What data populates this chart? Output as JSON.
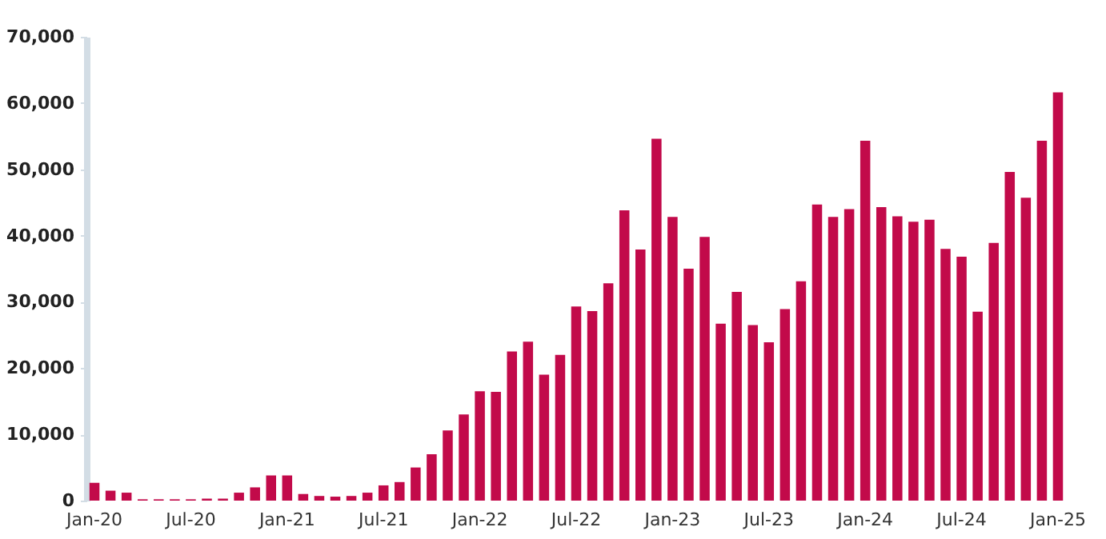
{
  "chart_data": {
    "type": "bar",
    "categories": [
      "Jan-20",
      null,
      null,
      null,
      null,
      null,
      "Jul-20",
      null,
      null,
      null,
      null,
      null,
      "Jan-21",
      null,
      null,
      null,
      null,
      null,
      "Jul-21",
      null,
      null,
      null,
      null,
      null,
      "Jan-22",
      null,
      null,
      null,
      null,
      null,
      "Jul-22",
      null,
      null,
      null,
      null,
      null,
      "Jan-23",
      null,
      null,
      null,
      null,
      null,
      "Jul-23",
      null,
      null,
      null,
      null,
      null,
      "Jan-24",
      null,
      null,
      null,
      null,
      null,
      "Jul-24",
      null,
      null,
      null,
      null,
      null,
      "Jan-25"
    ],
    "values": [
      2700,
      1500,
      1200,
      200,
      200,
      200,
      200,
      300,
      300,
      1200,
      2000,
      3800,
      3800,
      1000,
      700,
      600,
      700,
      1200,
      2300,
      2800,
      5000,
      7000,
      10600,
      13000,
      16500,
      16400,
      22500,
      24000,
      19000,
      22000,
      29300,
      28600,
      32800,
      43800,
      37900,
      54600,
      42800,
      35000,
      39800,
      26700,
      31500,
      26500,
      23900,
      28900,
      33100,
      44700,
      42800,
      44000,
      54300,
      44300,
      42900,
      42100,
      42400,
      38000,
      36800,
      28500,
      38900,
      49600,
      45700,
      54300,
      61600
    ],
    "color": "#c20a4a",
    "ylim": [
      0,
      70000
    ],
    "yticks": [
      0,
      {
        "value": 10000,
        "label": "10,000"
      },
      {
        "value": 20000,
        "label": "20,000"
      },
      {
        "value": 30000,
        "label": "30,000"
      },
      {
        "value": 40000,
        "label": "40,000"
      },
      {
        "value": 50000,
        "label": "50,000"
      },
      {
        "value": 60000,
        "label": "60,000"
      },
      {
        "value": 70000,
        "label": "70,000"
      }
    ],
    "grid": false
  }
}
